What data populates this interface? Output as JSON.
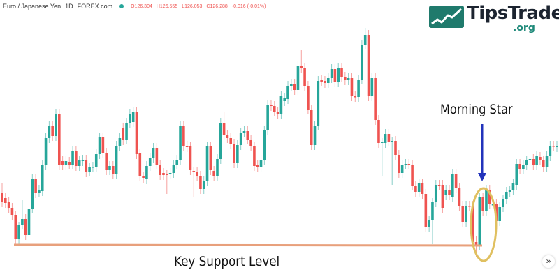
{
  "header": {
    "symbol": "Euro / Japanese Yen",
    "interval": "1D",
    "exchange": "FOREX.com",
    "open": "O126.304",
    "high": "H126.555",
    "low": "L126.053",
    "close": "C126.288",
    "change": "-0.016 (-0.01%)",
    "status_color": "#26a69a"
  },
  "logo": {
    "name": "TipsTrade",
    "suffix": ".org",
    "color": "#1f7a6c"
  },
  "annotations": {
    "support_label": "Key Support Level",
    "pattern_label": "Morning Star",
    "support_color": "#e8a07c",
    "arrow_color": "#2233bb",
    "ellipse_color": "#e0c060"
  },
  "scroll_button": {
    "label": "»",
    "icon": "double-chevron-right-icon"
  },
  "chart_data": {
    "type": "candlestick",
    "title": "",
    "xlabel": "",
    "ylabel": "",
    "grid": false,
    "colors": {
      "up": "#26a69a",
      "down": "#ef5350"
    },
    "candles_format": "[open, close, high?, low?] (approximate relative price levels; no price axis shown)",
    "candles": [
      [
        123.65,
        123.0,
        124.35,
        122.65
      ],
      [
        123.3,
        122.95
      ],
      [
        123.0,
        122.6
      ],
      [
        122.6,
        122.1
      ],
      [
        122.1,
        120.35,
        122.4,
        120.0
      ],
      [
        120.35,
        121.4,
        121.6,
        119.9
      ],
      [
        121.4,
        121.8,
        123.15,
        121.1
      ],
      [
        121.8,
        120.65
      ],
      [
        120.65,
        122.55
      ],
      [
        122.55,
        124.65
      ],
      [
        124.65,
        123.65
      ],
      [
        123.7,
        123.9
      ],
      [
        123.8,
        125.65
      ],
      [
        125.65,
        127.6
      ],
      [
        127.6,
        128.5
      ],
      [
        128.5,
        127.75
      ],
      [
        127.75,
        129.35
      ],
      [
        129.35,
        125.65
      ],
      [
        125.95,
        125.65
      ],
      [
        125.65,
        125.95
      ],
      [
        125.9,
        125.7
      ],
      [
        125.7,
        126.7
      ],
      [
        126.7,
        125.6
      ],
      [
        125.6,
        126.0
      ],
      [
        125.95,
        126.05
      ],
      [
        126.05,
        125.15
      ],
      [
        125.2,
        125.5
      ],
      [
        125.5,
        125.55
      ],
      [
        125.5,
        126.45
      ],
      [
        126.45,
        127.65
      ],
      [
        127.65,
        126.5
      ],
      [
        126.55,
        125.3
      ],
      [
        125.3,
        125.6
      ],
      [
        125.6,
        125.0
      ],
      [
        125.0,
        127.05
      ],
      [
        127.05,
        127.6
      ],
      [
        128.35,
        127.45
      ],
      [
        127.5,
        128.7
      ],
      [
        128.7,
        129.35
      ],
      [
        128.75,
        129.5
      ],
      [
        129.5,
        126.45
      ],
      [
        126.5,
        124.85
      ],
      [
        124.85,
        124.75
      ],
      [
        124.65,
        125.6
      ],
      [
        125.6,
        126.2
      ],
      [
        126.2,
        126.9
      ],
      [
        126.9,
        125.7
      ],
      [
        125.7,
        124.95
      ],
      [
        125.1,
        124.95
      ],
      [
        125.05,
        124.95,
        125.3,
        123.6
      ],
      [
        125.0,
        125.1
      ],
      [
        125.1,
        125.7
      ],
      [
        125.7,
        126.05
      ],
      [
        126.05,
        128.5
      ],
      [
        128.5,
        127.0
      ],
      [
        127.05,
        126.95
      ],
      [
        127.0,
        125.3
      ],
      [
        125.25,
        125.15,
        125.5,
        123.35
      ],
      [
        125.2,
        124.9
      ],
      [
        124.9,
        123.95
      ],
      [
        123.95,
        124.5
      ],
      [
        124.55,
        127.0
      ],
      [
        127.0,
        125.3
      ],
      [
        125.25,
        124.9
      ],
      [
        124.9,
        126.1
      ],
      [
        126.1,
        128.7
      ],
      [
        128.7,
        127.8,
        129.5,
        127.5
      ],
      [
        127.8,
        127.6
      ],
      [
        127.6,
        127.2
      ],
      [
        127.2,
        125.8
      ],
      [
        125.8,
        127.1
      ],
      [
        127.1,
        128.0
      ],
      [
        128.0,
        128.1
      ],
      [
        128.1,
        127.5
      ],
      [
        127.5,
        127.0
      ],
      [
        127.0,
        125.6
      ],
      [
        125.65,
        125.5
      ],
      [
        125.5,
        126.05
      ],
      [
        126.05,
        128.15
      ],
      [
        128.15,
        130.0
      ],
      [
        130.0,
        129.9
      ],
      [
        129.9,
        129.5
      ],
      [
        129.5,
        129.3
      ],
      [
        129.35,
        130.65
      ],
      [
        130.25,
        130.45
      ],
      [
        130.4,
        131.35
      ],
      [
        131.35,
        131.5
      ],
      [
        131.5,
        131.05
      ],
      [
        131.05,
        132.75
      ],
      [
        132.75,
        132.65,
        133.9,
        132.3
      ],
      [
        132.65,
        131.35
      ],
      [
        131.35,
        129.65
      ],
      [
        129.65,
        127.1
      ],
      [
        127.1,
        128.5
      ],
      [
        128.5,
        131.7
      ],
      [
        131.75,
        131.65
      ],
      [
        131.7,
        131.55
      ],
      [
        131.55,
        131.9
      ],
      [
        131.9,
        132.55
      ],
      [
        132.55,
        131.6
      ],
      [
        131.6,
        132.65
      ],
      [
        132.65,
        132.0
      ],
      [
        132.0,
        131.75
      ],
      [
        131.75,
        131.9
      ],
      [
        131.9,
        130.6
      ],
      [
        130.6,
        130.55
      ],
      [
        130.55,
        131.8
      ],
      [
        131.8,
        134.3
      ],
      [
        134.3,
        135.0,
        135.5,
        134.0
      ],
      [
        135.0,
        130.6
      ],
      [
        130.6,
        131.9
      ],
      [
        131.9,
        128.9
      ],
      [
        128.9,
        127.25
      ],
      [
        127.25,
        127.35,
        127.6,
        124.9
      ],
      [
        127.25,
        127.9
      ],
      [
        127.9,
        127.35
      ],
      [
        127.35,
        127.4,
        127.7,
        124.25
      ],
      [
        127.4,
        126.4
      ],
      [
        126.4,
        125.1
      ],
      [
        125.1,
        125.7
      ],
      [
        125.7,
        125.75
      ],
      [
        125.75,
        125.7
      ],
      [
        125.7,
        124.2
      ],
      [
        124.2,
        123.75
      ],
      [
        123.75,
        124.35
      ],
      [
        124.35,
        123.6
      ],
      [
        123.6,
        121.25
      ],
      [
        121.25,
        121.7
      ],
      [
        121.7,
        123.0,
        123.3,
        120.0
      ],
      [
        123.0,
        124.25
      ],
      [
        124.25,
        124.2
      ],
      [
        124.25,
        122.6
      ],
      [
        123.5,
        123.9
      ],
      [
        123.9,
        123.5
      ],
      [
        123.35,
        125.0
      ],
      [
        125.0,
        124.0
      ],
      [
        124.0,
        122.75
      ],
      [
        122.75,
        121.6
      ],
      [
        121.6,
        122.75
      ],
      [
        122.75,
        122.7
      ],
      [
        122.75,
        120.15
      ],
      [
        120.15,
        119.9,
        120.6,
        119.1
      ],
      [
        119.9,
        123.35
      ],
      [
        123.35,
        122.35
      ],
      [
        122.35,
        123.9
      ],
      [
        123.9,
        122.85
      ],
      [
        122.85,
        122.85
      ],
      [
        122.85,
        121.65
      ],
      [
        121.65,
        122.65
      ],
      [
        122.65,
        123.2
      ],
      [
        123.2,
        123.75
      ],
      [
        123.75,
        123.85
      ],
      [
        123.9,
        124.35
      ],
      [
        124.25,
        125.75
      ],
      [
        125.75,
        125.35
      ],
      [
        125.35,
        125.65
      ],
      [
        125.65,
        126.0
      ],
      [
        126.0,
        126.1
      ],
      [
        126.1,
        125.65
      ],
      [
        125.65,
        126.3
      ],
      [
        126.25,
        126.0
      ],
      [
        126.0,
        125.5
      ],
      [
        125.5,
        126.3
      ],
      [
        126.3,
        127.05
      ],
      [
        127.05,
        127.0
      ],
      [
        126.95,
        127.05
      ]
    ],
    "support_level": 120.0
  }
}
